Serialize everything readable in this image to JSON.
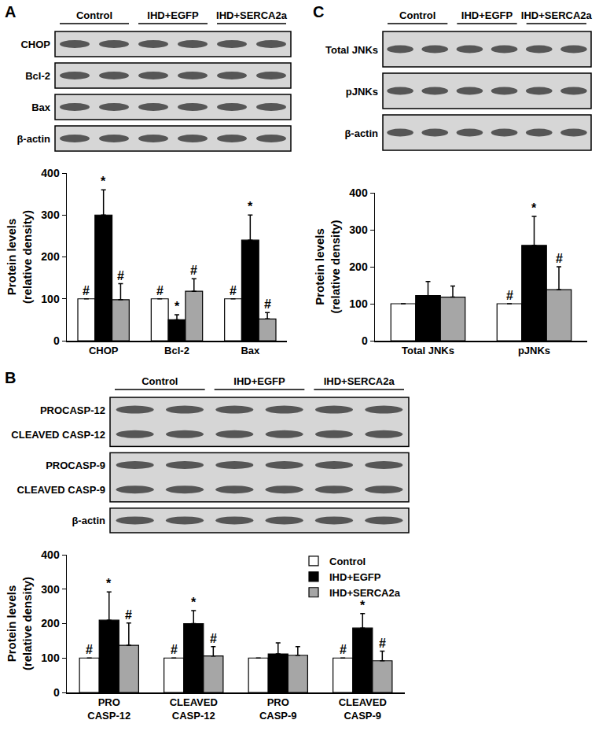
{
  "chart_data": [
    {
      "panel": "A",
      "type": "bar",
      "grid": false,
      "blot": {
        "groups": [
          "Control",
          "IHD+EGFP",
          "IHD+SERCA2a"
        ],
        "rows": [
          [
            "CHOP"
          ],
          [
            "Bcl-2"
          ],
          [
            "Bax"
          ],
          [
            "β-actin"
          ]
        ]
      },
      "categories": [
        "CHOP",
        "Bcl-2",
        "Bax"
      ],
      "ylabel": [
        "Protein levels",
        "(relative density)"
      ],
      "ylim": [
        0,
        400
      ],
      "yticks": [
        0,
        100,
        200,
        300,
        400
      ],
      "series": [
        {
          "color": "#ffffff",
          "values": [
            100,
            100,
            100
          ],
          "errors": [
            0,
            0,
            0
          ],
          "marks": [
            "#",
            "#",
            "#"
          ]
        },
        {
          "color": "#000000",
          "values": [
            300,
            50,
            240
          ],
          "errors": [
            60,
            12,
            60
          ],
          "marks": [
            "*",
            "*",
            "*"
          ]
        },
        {
          "color": "#a6a6a6",
          "values": [
            98,
            118,
            52
          ],
          "errors": [
            38,
            30,
            15
          ],
          "marks": [
            "#",
            "#",
            "#"
          ]
        }
      ]
    },
    {
      "panel": "C",
      "type": "bar",
      "grid": false,
      "blot": {
        "groups": [
          "Control",
          "IHD+EGFP",
          "IHD+SERCA2a"
        ],
        "rows": [
          [
            "Total JNKs"
          ],
          [
            "pJNKs"
          ],
          [
            "β-actin"
          ]
        ]
      },
      "categories": [
        "Total JNKs",
        "pJNKs"
      ],
      "ylabel": [
        "Protein levels",
        "(relative density)"
      ],
      "ylim": [
        0,
        400
      ],
      "yticks": [
        0,
        100,
        200,
        300,
        400
      ],
      "series": [
        {
          "color": "#ffffff",
          "values": [
            100,
            100
          ],
          "errors": [
            0,
            0
          ],
          "marks": [
            null,
            "#"
          ]
        },
        {
          "color": "#000000",
          "values": [
            122,
            258
          ],
          "errors": [
            38,
            78
          ],
          "marks": [
            null,
            "*"
          ]
        },
        {
          "color": "#a6a6a6",
          "values": [
            118,
            138
          ],
          "errors": [
            30,
            62
          ],
          "marks": [
            null,
            "#"
          ]
        }
      ]
    },
    {
      "panel": "B",
      "type": "bar",
      "grid": false,
      "legend": "upper right",
      "blot": {
        "groups": [
          "Control",
          "IHD+EGFP",
          "IHD+SERCA2a"
        ],
        "rows": [
          [
            "PROCASP-12",
            "CLEAVED CASP-12"
          ],
          [
            "PROCASP-9",
            "CLEAVED CASP-9"
          ],
          [
            "β-actin"
          ]
        ]
      },
      "categories": [
        "PRO CASP-12",
        "CLEAVED CASP-12",
        "PRO CASP-9",
        "CLEAVED CASP-9"
      ],
      "ylabel": [
        "Protein levels",
        "(relative density)"
      ],
      "ylim": [
        0,
        400
      ],
      "yticks": [
        0,
        100,
        200,
        300,
        400
      ],
      "series": [
        {
          "name": "Control",
          "color": "#ffffff",
          "values": [
            100,
            100,
            100,
            100
          ],
          "errors": [
            0,
            0,
            0,
            0
          ],
          "marks": [
            "#",
            "#",
            null,
            "#"
          ]
        },
        {
          "name": "IHD+EGFP",
          "color": "#000000",
          "values": [
            210,
            200,
            112,
            187
          ],
          "errors": [
            82,
            38,
            32,
            42
          ],
          "marks": [
            "*",
            "*",
            null,
            "*"
          ]
        },
        {
          "name": "IHD+SERCA2a",
          "color": "#a6a6a6",
          "values": [
            137,
            106,
            108,
            92
          ],
          "errors": [
            65,
            27,
            25,
            28
          ],
          "marks": [
            "#",
            "#",
            null,
            "#"
          ]
        }
      ]
    }
  ]
}
